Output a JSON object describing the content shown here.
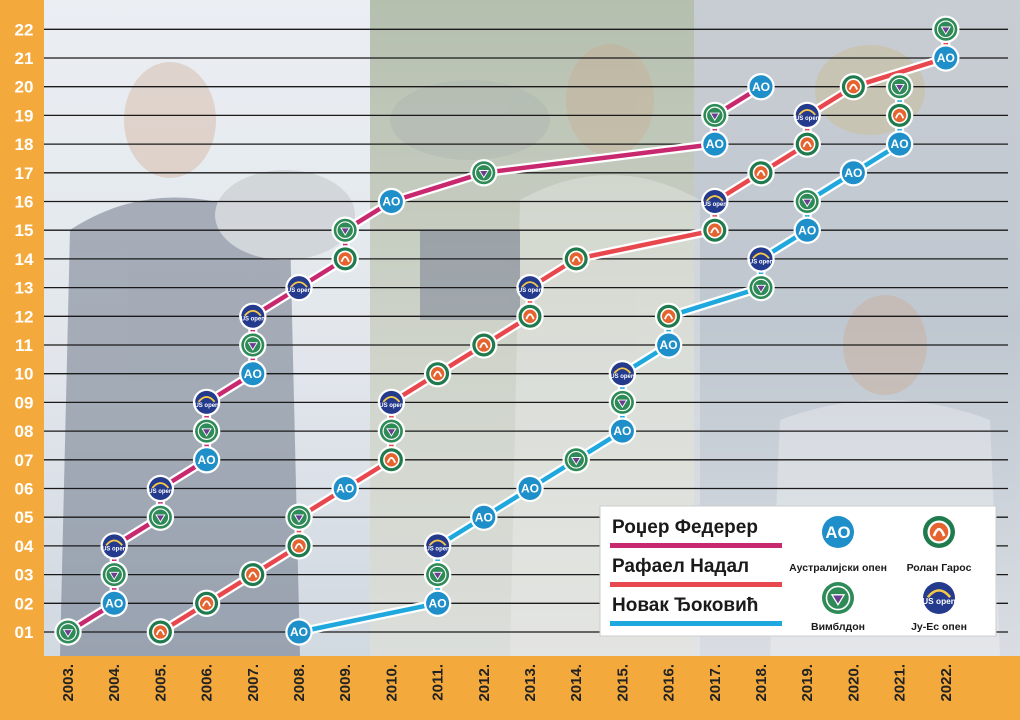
{
  "chart_data": {
    "type": "line",
    "title": "",
    "xlabel": "",
    "ylabel": "",
    "y_ticks": [
      "01",
      "02",
      "03",
      "04",
      "05",
      "06",
      "07",
      "08",
      "09",
      "10",
      "11",
      "12",
      "13",
      "14",
      "15",
      "16",
      "17",
      "18",
      "19",
      "20",
      "21",
      "22"
    ],
    "categories": [
      "2003.",
      "2004.",
      "2005.",
      "2006.",
      "2007.",
      "2008.",
      "2009.",
      "2010.",
      "2011.",
      "2012.",
      "2013.",
      "2014.",
      "2015.",
      "2016.",
      "2017.",
      "2018.",
      "2019.",
      "2020.",
      "2021.",
      "2022."
    ],
    "ylim": [
      1,
      22
    ],
    "grid": true,
    "legend_position": "bottom-right",
    "series": [
      {
        "name": "Роџер Федерер",
        "color": "#c8286e",
        "points": [
          {
            "year": 2003,
            "titles": 1,
            "event": "wimbledon"
          },
          {
            "year": 2004,
            "titles": 2,
            "event": "ao"
          },
          {
            "year": 2004,
            "titles": 3,
            "event": "wimbledon"
          },
          {
            "year": 2004,
            "titles": 4,
            "event": "usopen"
          },
          {
            "year": 2005,
            "titles": 5,
            "event": "wimbledon"
          },
          {
            "year": 2005,
            "titles": 6,
            "event": "usopen"
          },
          {
            "year": 2006,
            "titles": 7,
            "event": "ao"
          },
          {
            "year": 2006,
            "titles": 8,
            "event": "wimbledon"
          },
          {
            "year": 2006,
            "titles": 9,
            "event": "usopen"
          },
          {
            "year": 2007,
            "titles": 10,
            "event": "ao"
          },
          {
            "year": 2007,
            "titles": 11,
            "event": "wimbledon"
          },
          {
            "year": 2007,
            "titles": 12,
            "event": "usopen"
          },
          {
            "year": 2008,
            "titles": 13,
            "event": "usopen"
          },
          {
            "year": 2009,
            "titles": 14,
            "event": "rolandgarros"
          },
          {
            "year": 2009,
            "titles": 15,
            "event": "wimbledon"
          },
          {
            "year": 2010,
            "titles": 16,
            "event": "ao"
          },
          {
            "year": 2012,
            "titles": 17,
            "event": "wimbledon"
          },
          {
            "year": 2017,
            "titles": 18,
            "event": "ao"
          },
          {
            "year": 2017,
            "titles": 19,
            "event": "wimbledon"
          },
          {
            "year": 2018,
            "titles": 20,
            "event": "ao"
          }
        ]
      },
      {
        "name": "Рафаел Надал",
        "color": "#e8474e",
        "points": [
          {
            "year": 2005,
            "titles": 1,
            "event": "rolandgarros"
          },
          {
            "year": 2006,
            "titles": 2,
            "event": "rolandgarros"
          },
          {
            "year": 2007,
            "titles": 3,
            "event": "rolandgarros"
          },
          {
            "year": 2008,
            "titles": 4,
            "event": "rolandgarros"
          },
          {
            "year": 2008,
            "titles": 5,
            "event": "wimbledon"
          },
          {
            "year": 2009,
            "titles": 6,
            "event": "ao"
          },
          {
            "year": 2010,
            "titles": 7,
            "event": "rolandgarros"
          },
          {
            "year": 2010,
            "titles": 8,
            "event": "wimbledon"
          },
          {
            "year": 2010,
            "titles": 9,
            "event": "usopen"
          },
          {
            "year": 2011,
            "titles": 10,
            "event": "rolandgarros"
          },
          {
            "year": 2012,
            "titles": 11,
            "event": "rolandgarros"
          },
          {
            "year": 2013,
            "titles": 12,
            "event": "rolandgarros"
          },
          {
            "year": 2013,
            "titles": 13,
            "event": "usopen"
          },
          {
            "year": 2014,
            "titles": 14,
            "event": "rolandgarros"
          },
          {
            "year": 2017,
            "titles": 15,
            "event": "rolandgarros"
          },
          {
            "year": 2017,
            "titles": 16,
            "event": "usopen"
          },
          {
            "year": 2018,
            "titles": 17,
            "event": "rolandgarros"
          },
          {
            "year": 2019,
            "titles": 18,
            "event": "rolandgarros"
          },
          {
            "year": 2019,
            "titles": 19,
            "event": "usopen"
          },
          {
            "year": 2020,
            "titles": 20,
            "event": "rolandgarros"
          },
          {
            "year": 2022,
            "titles": 21,
            "event": "ao"
          },
          {
            "year": 2022,
            "titles": 22,
            "event": "wimbledon"
          }
        ]
      },
      {
        "name": "Новак Ђоковић",
        "color": "#1fa8dd",
        "points": [
          {
            "year": 2008,
            "titles": 1,
            "event": "ao"
          },
          {
            "year": 2011,
            "titles": 2,
            "event": "ao"
          },
          {
            "year": 2011,
            "titles": 3,
            "event": "wimbledon"
          },
          {
            "year": 2011,
            "titles": 4,
            "event": "usopen"
          },
          {
            "year": 2012,
            "titles": 5,
            "event": "ao"
          },
          {
            "year": 2013,
            "titles": 6,
            "event": "ao"
          },
          {
            "year": 2014,
            "titles": 7,
            "event": "wimbledon"
          },
          {
            "year": 2015,
            "titles": 8,
            "event": "ao"
          },
          {
            "year": 2015,
            "titles": 9,
            "event": "wimbledon"
          },
          {
            "year": 2015,
            "titles": 10,
            "event": "usopen"
          },
          {
            "year": 2016,
            "titles": 11,
            "event": "ao"
          },
          {
            "year": 2016,
            "titles": 12,
            "event": "rolandgarros"
          },
          {
            "year": 2018,
            "titles": 13,
            "event": "wimbledon"
          },
          {
            "year": 2018,
            "titles": 14,
            "event": "usopen"
          },
          {
            "year": 2019,
            "titles": 15,
            "event": "ao"
          },
          {
            "year": 2019,
            "titles": 16,
            "event": "wimbledon"
          },
          {
            "year": 2020,
            "titles": 17,
            "event": "ao"
          },
          {
            "year": 2021,
            "titles": 18,
            "event": "ao"
          },
          {
            "year": 2021,
            "titles": 19,
            "event": "rolandgarros"
          },
          {
            "year": 2021,
            "titles": 20,
            "event": "wimbledon"
          }
        ]
      }
    ],
    "events": {
      "ao": {
        "label": "Аустралијски опен",
        "icon_text": "AO",
        "color": "#1e8fc9"
      },
      "rolandgarros": {
        "label": "Ролан Гарос",
        "icon": "roland-garros-icon",
        "color": "#e5632f",
        "ring": "#1f7a4e"
      },
      "wimbledon": {
        "label": "Вимблдон",
        "icon": "wimbledon-icon",
        "color": "#2e8b57",
        "accent": "#6a3d8f"
      },
      "usopen": {
        "label": "Ју-Ес опен",
        "icon_text": "US open",
        "color": "#243a8c",
        "accent": "#f6c84a"
      }
    }
  },
  "colors": {
    "axis_band": "#f3a93b",
    "grid": "#1a1a1a",
    "node_border": "#ffffff"
  }
}
